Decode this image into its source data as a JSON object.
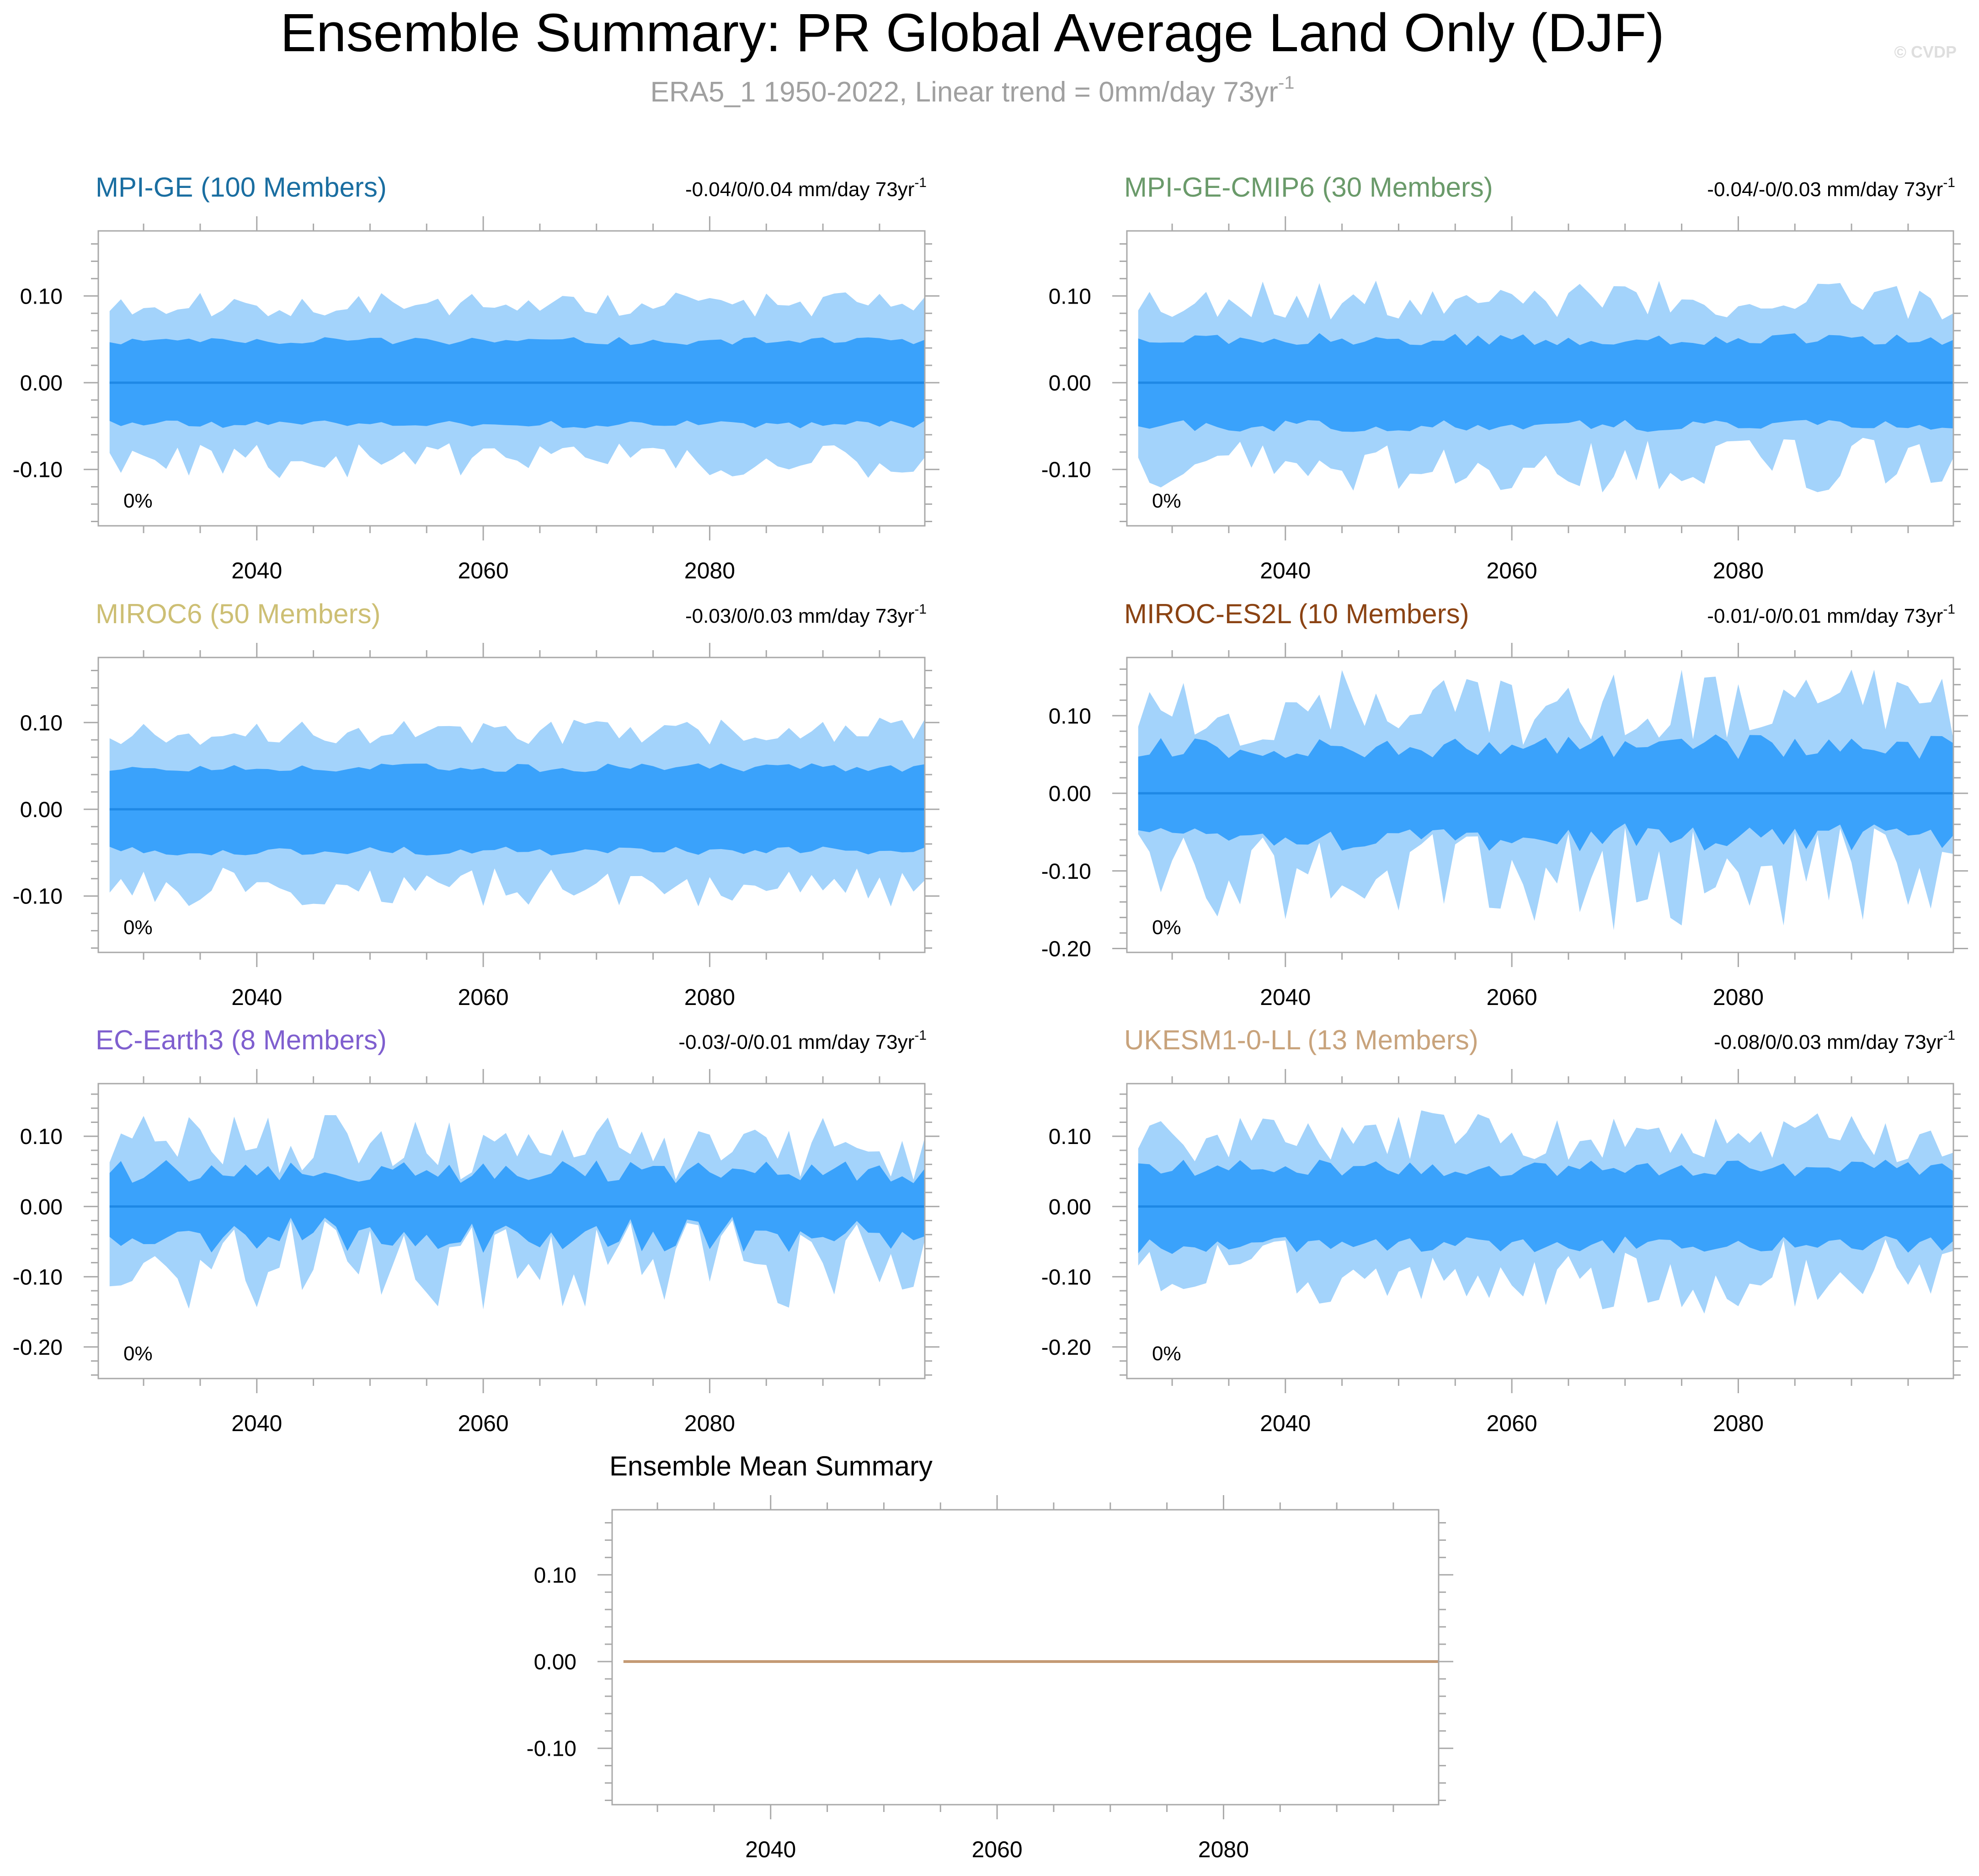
{
  "header": {
    "title": "Ensemble Summary: PR Global Average Land Only (DJF)",
    "subtitle": "ERA5_1 1950-2022, Linear trend = 0mm/day 73yr",
    "subtitle_superscript": "-1",
    "watermark": "© CVDP"
  },
  "colors": {
    "outer_band": "#a3d3fb",
    "inner_band": "#3aa2fb",
    "mean_line": "#1e88e5",
    "summary_line": "#c49a74",
    "frame": "#a9a9a9"
  },
  "chart_data": [
    {
      "type": "area",
      "title": "MPI-GE (100 Members)",
      "title_color": "#1a6ea1",
      "trend_label": "-0.04/0/0.04 mm/day 73yr",
      "trend_superscript": "-1",
      "corner_label": "0%",
      "xlim": [
        2026,
        2099
      ],
      "xticks": [
        2040,
        2060,
        2080
      ],
      "ylim": [
        -0.165,
        0.175
      ],
      "yticks": [
        0.1,
        0.0,
        -0.1
      ],
      "ytick_labels": [
        "0.10",
        "0.00",
        "-0.10"
      ],
      "years": [
        2027,
        2099
      ],
      "outer_amp": 0.09,
      "inner_amp": 0.048,
      "noise": 0.16,
      "seed": 11
    },
    {
      "type": "area",
      "title": "MPI-GE-CMIP6 (30 Members)",
      "title_color": "#6a9a6a",
      "trend_label": "-0.04/-0/0.03 mm/day 73yr",
      "trend_superscript": "-1",
      "corner_label": "0%",
      "xlim": [
        2026,
        2099
      ],
      "xticks": [
        2040,
        2060,
        2080
      ],
      "ylim": [
        -0.165,
        0.175
      ],
      "yticks": [
        0.1,
        0.0,
        -0.1
      ],
      "ytick_labels": [
        "0.10",
        "0.00",
        "-0.10"
      ],
      "years": [
        2027,
        2099
      ],
      "outer_amp": 0.095,
      "inner_amp": 0.05,
      "noise": 0.24,
      "seed": 23
    },
    {
      "type": "area",
      "title": "MIROC6 (50 Members)",
      "title_color": "#cdbf74",
      "trend_label": "-0.03/0/0.03 mm/day 73yr",
      "trend_superscript": "-1",
      "corner_label": "0%",
      "xlim": [
        2026,
        2099
      ],
      "xticks": [
        2040,
        2060,
        2080
      ],
      "ylim": [
        -0.165,
        0.175
      ],
      "yticks": [
        0.1,
        0.0,
        -0.1
      ],
      "ytick_labels": [
        "0.10",
        "0.00",
        "-0.10"
      ],
      "years": [
        2027,
        2099
      ],
      "outer_amp": 0.09,
      "inner_amp": 0.048,
      "noise": 0.18,
      "seed": 37
    },
    {
      "type": "area",
      "title": "MIROC-ES2L (10 Members)",
      "title_color": "#8b4313",
      "trend_label": "-0.01/-0/0.01 mm/day 73yr",
      "trend_superscript": "-1",
      "corner_label": "0%",
      "xlim": [
        2026,
        2099
      ],
      "xticks": [
        2040,
        2060,
        2080
      ],
      "ylim": [
        -0.205,
        0.175
      ],
      "yticks": [
        0.1,
        0.0,
        -0.1,
        -0.2
      ],
      "ytick_labels": [
        "0.10",
        "0.00",
        "-0.10",
        "-0.20"
      ],
      "years": [
        2027,
        2099
      ],
      "outer_amp": 0.11,
      "inner_amp": 0.06,
      "noise": 0.45,
      "seed": 53
    },
    {
      "type": "area",
      "title": "EC-Earth3 (8 Members)",
      "title_color": "#7f5fcf",
      "trend_label": "-0.03/-0/0.01 mm/day 73yr",
      "trend_superscript": "-1",
      "corner_label": "0%",
      "xlim": [
        2026,
        2099
      ],
      "xticks": [
        2040,
        2060,
        2080
      ],
      "ylim": [
        -0.245,
        0.175
      ],
      "yticks": [
        0.1,
        0.0,
        -0.1,
        -0.2
      ],
      "ytick_labels": [
        "0.10",
        "0.00",
        "-0.10",
        "-0.20"
      ],
      "years": [
        2027,
        2099
      ],
      "outer_amp": 0.085,
      "inner_amp": 0.05,
      "noise": 0.55,
      "seed": 71
    },
    {
      "type": "area",
      "title": "UKESM1-0-LL (13 Members)",
      "title_color": "#c8a37c",
      "trend_label": "-0.08/0/0.03 mm/day 73yr",
      "trend_superscript": "-1",
      "corner_label": "0%",
      "xlim": [
        2026,
        2099
      ],
      "xticks": [
        2040,
        2060,
        2080
      ],
      "ylim": [
        -0.245,
        0.175
      ],
      "yticks": [
        0.1,
        0.0,
        -0.1,
        -0.2
      ],
      "ytick_labels": [
        "0.10",
        "0.00",
        "-0.10",
        "-0.20"
      ],
      "years": [
        2027,
        2099
      ],
      "outer_amp": 0.1,
      "inner_amp": 0.055,
      "noise": 0.38,
      "seed": 89
    },
    {
      "type": "line",
      "title": "Ensemble Mean Summary",
      "title_color": "#000000",
      "xlim": [
        2026,
        2099
      ],
      "xticks": [
        2040,
        2060,
        2080
      ],
      "ylim": [
        -0.165,
        0.175
      ],
      "yticks": [
        0.1,
        0.0,
        -0.1
      ],
      "ytick_labels": [
        "0.10",
        "0.00",
        "-0.10"
      ],
      "series": [
        {
          "name": "ensemble-mean",
          "x": [
            2027,
            2099
          ],
          "values": [
            0,
            0
          ]
        }
      ]
    }
  ]
}
